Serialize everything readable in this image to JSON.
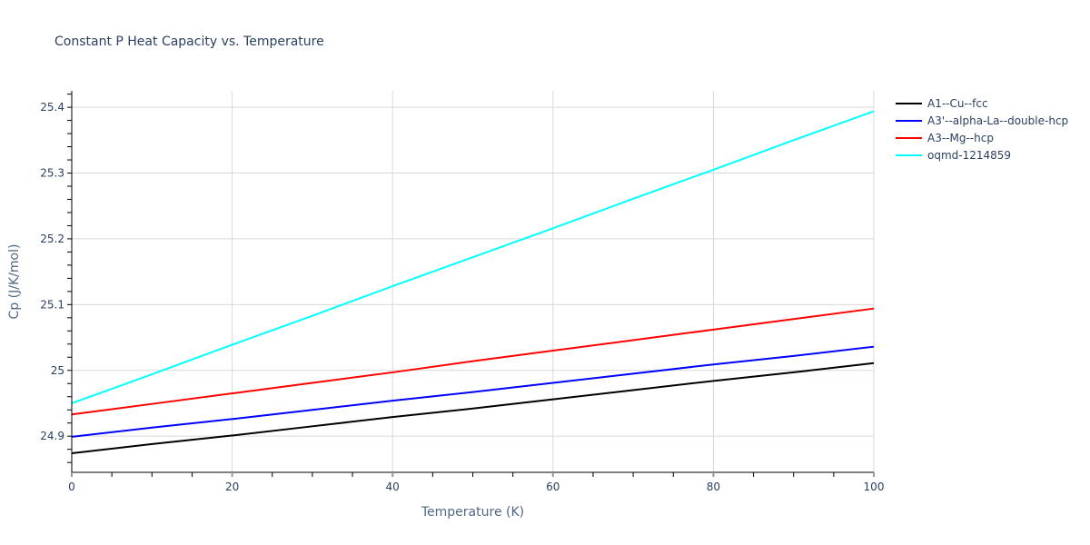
{
  "chart_data": {
    "type": "line",
    "title": "Constant P Heat Capacity vs. Temperature",
    "xlabel": "Temperature (K)",
    "ylabel": "Cp (J/K/mol)",
    "xlim": [
      0,
      100
    ],
    "ylim": [
      24.845,
      25.425
    ],
    "x_ticks": [
      0,
      20,
      40,
      60,
      80,
      100
    ],
    "x_tick_labels": [
      "0",
      "20",
      "40",
      "60",
      "80",
      "100"
    ],
    "x_minor_tick_step": 5,
    "y_ticks": [
      24.9,
      25.0,
      25.1,
      25.2,
      25.3,
      25.4
    ],
    "y_tick_labels": [
      "24.9",
      "25",
      "25.1",
      "25.2",
      "25.3",
      "25.4"
    ],
    "y_minor_tick_step": 0.02,
    "grid": true,
    "legend_position": "top-right-outside",
    "x": [
      0,
      10,
      20,
      30,
      40,
      50,
      60,
      70,
      80,
      90,
      100
    ],
    "series": [
      {
        "name": "A1--Cu--fcc",
        "color": "#000000",
        "values": [
          24.874,
          24.888,
          24.901,
          24.915,
          24.929,
          24.942,
          24.956,
          24.97,
          24.984,
          24.997,
          25.011
        ]
      },
      {
        "name": "A3'--alpha-La--double-hcp",
        "color": "#0000ff",
        "values": [
          24.899,
          24.913,
          24.926,
          24.94,
          24.954,
          24.967,
          24.981,
          24.995,
          25.009,
          25.022,
          25.036
        ]
      },
      {
        "name": "A3--Mg--hcp",
        "color": "#ff0000",
        "values": [
          24.933,
          24.949,
          24.965,
          24.981,
          24.997,
          25.014,
          25.03,
          25.046,
          25.062,
          25.078,
          25.094
        ]
      },
      {
        "name": "oqmd-1214859",
        "color": "#00ffff",
        "values": [
          24.95,
          24.994,
          25.039,
          25.083,
          25.128,
          25.172,
          25.216,
          25.261,
          25.305,
          25.35,
          25.394
        ]
      }
    ]
  },
  "colors": {
    "text": "#2a3f5f",
    "axis_title": "#506784",
    "grid": "#d9d9d9",
    "axis_line": "#000000",
    "background": "#ffffff"
  }
}
